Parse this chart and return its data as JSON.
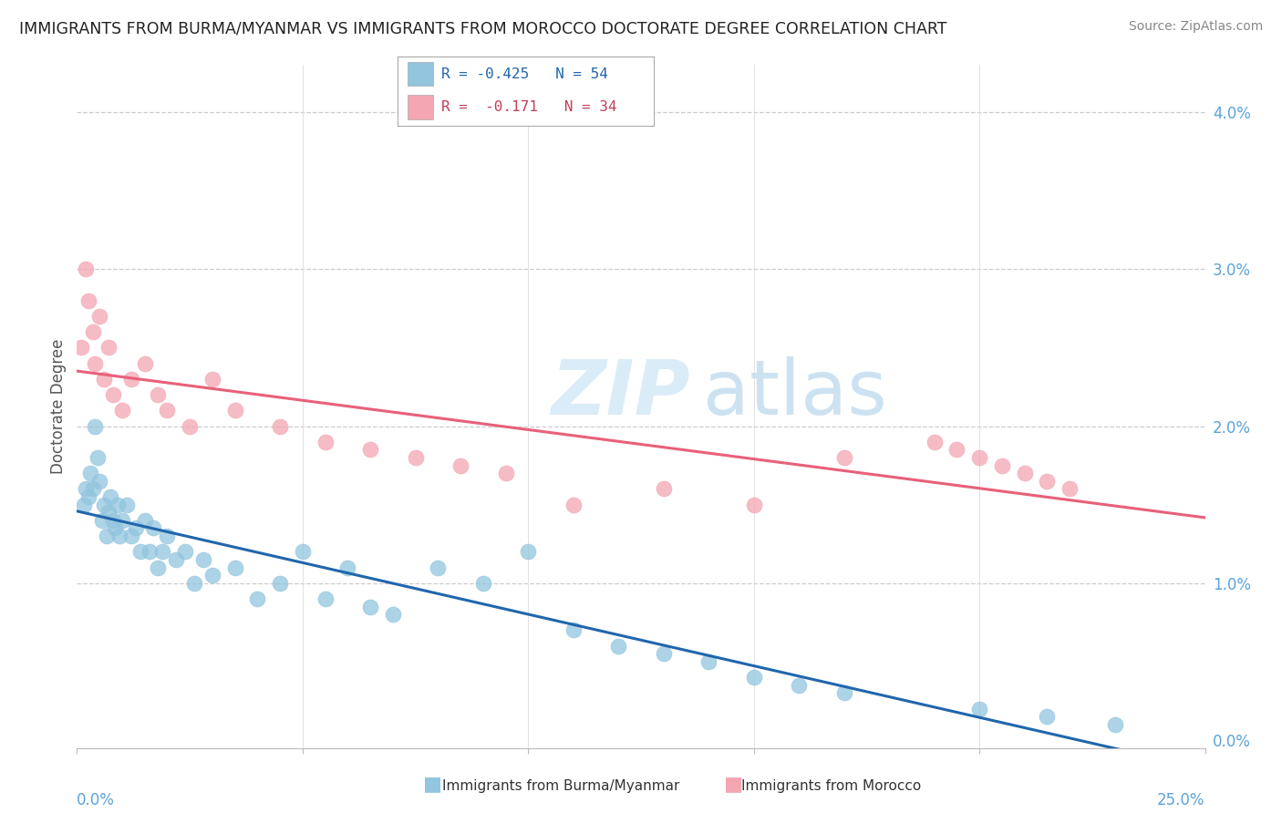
{
  "title": "IMMIGRANTS FROM BURMA/MYANMAR VS IMMIGRANTS FROM MOROCCO DOCTORATE DEGREE CORRELATION CHART",
  "source": "Source: ZipAtlas.com",
  "ylabel": "Doctorate Degree",
  "xmin": 0.0,
  "xmax": 25.0,
  "ymin": -0.05,
  "ymax": 4.3,
  "legend_blue_r": "-0.425",
  "legend_blue_n": "54",
  "legend_pink_r": "-0.171",
  "legend_pink_n": "34",
  "blue_color": "#92C5DE",
  "pink_color": "#F4A6B2",
  "blue_line_color": "#2166AC",
  "pink_line_color": "#E8607A",
  "blue_x": [
    0.15,
    0.2,
    0.25,
    0.3,
    0.35,
    0.4,
    0.45,
    0.5,
    0.55,
    0.6,
    0.65,
    0.7,
    0.75,
    0.8,
    0.85,
    0.9,
    0.95,
    1.0,
    1.1,
    1.2,
    1.3,
    1.4,
    1.5,
    1.6,
    1.7,
    1.8,
    1.9,
    2.0,
    2.2,
    2.4,
    2.6,
    2.8,
    3.0,
    3.5,
    4.0,
    4.5,
    5.0,
    5.5,
    6.0,
    6.5,
    7.0,
    8.0,
    9.0,
    10.0,
    11.0,
    12.0,
    13.0,
    14.0,
    15.0,
    16.0,
    17.0,
    20.0,
    21.5,
    23.0
  ],
  "blue_y": [
    1.5,
    1.6,
    1.55,
    1.7,
    1.6,
    2.0,
    1.8,
    1.65,
    1.4,
    1.5,
    1.3,
    1.45,
    1.55,
    1.4,
    1.35,
    1.5,
    1.3,
    1.4,
    1.5,
    1.3,
    1.35,
    1.2,
    1.4,
    1.2,
    1.35,
    1.1,
    1.2,
    1.3,
    1.15,
    1.2,
    1.0,
    1.15,
    1.05,
    1.1,
    0.9,
    1.0,
    1.2,
    0.9,
    1.1,
    0.85,
    0.8,
    1.1,
    1.0,
    1.2,
    0.7,
    0.6,
    0.55,
    0.5,
    0.4,
    0.35,
    0.3,
    0.2,
    0.15,
    0.1
  ],
  "pink_x": [
    0.1,
    0.2,
    0.25,
    0.35,
    0.4,
    0.5,
    0.6,
    0.7,
    0.8,
    1.0,
    1.2,
    1.5,
    1.8,
    2.0,
    2.5,
    3.0,
    3.5,
    4.5,
    5.5,
    6.5,
    7.5,
    8.5,
    9.5,
    11.0,
    13.0,
    15.0,
    17.0,
    19.0,
    19.5,
    20.0,
    20.5,
    21.0,
    21.5,
    22.0
  ],
  "pink_y": [
    2.5,
    3.0,
    2.8,
    2.6,
    2.4,
    2.7,
    2.3,
    2.5,
    2.2,
    2.1,
    2.3,
    2.4,
    2.2,
    2.1,
    2.0,
    2.3,
    2.1,
    2.0,
    1.9,
    1.85,
    1.8,
    1.75,
    1.7,
    1.5,
    1.6,
    1.5,
    1.8,
    1.9,
    1.85,
    1.8,
    1.75,
    1.7,
    1.65,
    1.6
  ]
}
